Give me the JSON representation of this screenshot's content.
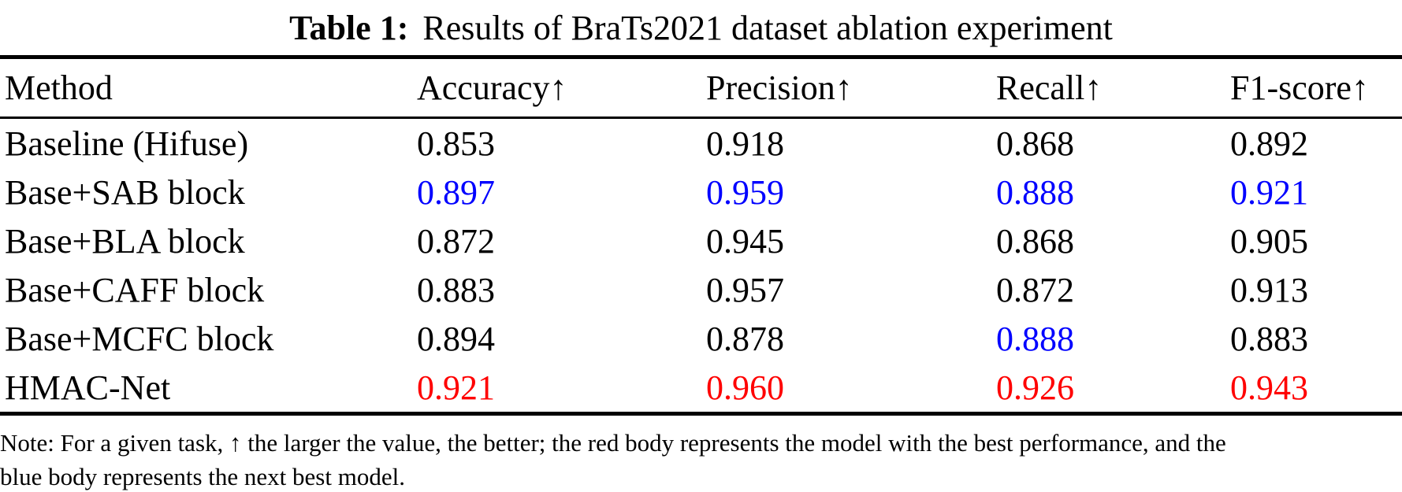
{
  "title": {
    "label": "Table 1:",
    "text": "Results of BraTs2021 dataset ablation experiment"
  },
  "table": {
    "columns": [
      {
        "key": "method",
        "label": "Method"
      },
      {
        "key": "accuracy",
        "label": "Accuracy↑"
      },
      {
        "key": "precision",
        "label": "Precision↑"
      },
      {
        "key": "recall",
        "label": "Recall↑"
      },
      {
        "key": "f1",
        "label": "F1-score↑"
      }
    ],
    "rows": [
      {
        "method": "Baseline (Hifuse)",
        "cells": [
          {
            "value": "0.853",
            "highlight": "none"
          },
          {
            "value": "0.918",
            "highlight": "none"
          },
          {
            "value": "0.868",
            "highlight": "none"
          },
          {
            "value": "0.892",
            "highlight": "none"
          }
        ]
      },
      {
        "method": "Base+SAB block",
        "cells": [
          {
            "value": "0.897",
            "highlight": "second"
          },
          {
            "value": "0.959",
            "highlight": "second"
          },
          {
            "value": "0.888",
            "highlight": "second"
          },
          {
            "value": "0.921",
            "highlight": "second"
          }
        ]
      },
      {
        "method": "Base+BLA block",
        "cells": [
          {
            "value": "0.872",
            "highlight": "none"
          },
          {
            "value": "0.945",
            "highlight": "none"
          },
          {
            "value": "0.868",
            "highlight": "none"
          },
          {
            "value": "0.905",
            "highlight": "none"
          }
        ]
      },
      {
        "method": "Base+CAFF block",
        "cells": [
          {
            "value": "0.883",
            "highlight": "none"
          },
          {
            "value": "0.957",
            "highlight": "none"
          },
          {
            "value": "0.872",
            "highlight": "none"
          },
          {
            "value": "0.913",
            "highlight": "none"
          }
        ]
      },
      {
        "method": "Base+MCFC block",
        "cells": [
          {
            "value": "0.894",
            "highlight": "none"
          },
          {
            "value": "0.878",
            "highlight": "none"
          },
          {
            "value": "0.888",
            "highlight": "second"
          },
          {
            "value": "0.883",
            "highlight": "none"
          }
        ]
      },
      {
        "method": "HMAC-Net",
        "cells": [
          {
            "value": "0.921",
            "highlight": "best"
          },
          {
            "value": "0.960",
            "highlight": "best"
          },
          {
            "value": "0.926",
            "highlight": "best"
          },
          {
            "value": "0.943",
            "highlight": "best"
          }
        ]
      }
    ]
  },
  "colors": {
    "none": "#000000",
    "second": "#0000ff",
    "best": "#ff0000"
  },
  "note": {
    "line1": "Note: For a given task, ↑ the larger the value, the better; the red body represents the model with the best performance, and the",
    "line2": "blue body represents the next best model."
  }
}
